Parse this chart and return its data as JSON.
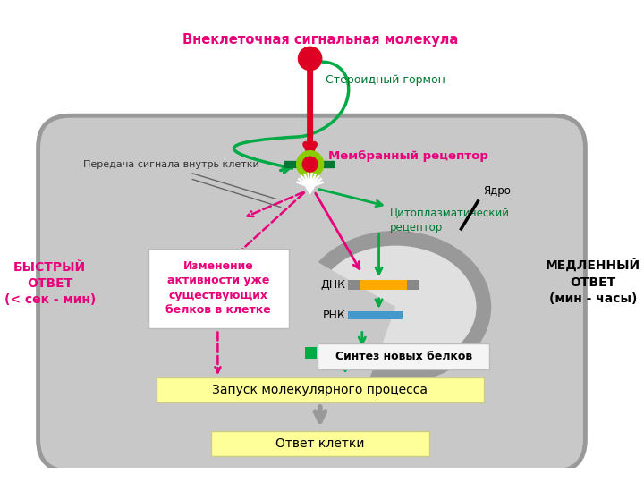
{
  "bg_color": "#ffffff",
  "cell_color": "#c8c8c8",
  "cell_border_color": "#999999",
  "nucleus_color": "#e0e0e0",
  "nucleus_border_color": "#888888",
  "magenta": "#e8007a",
  "green": "#00aa44",
  "dark_green": "#007733",
  "red": "#dd0022",
  "yellow_box": "#ffff99",
  "white_box": "#ffffff",
  "gray_arrow": "#999999",
  "texts": {
    "extracellular": "Внеклеточная сигнальная молекула",
    "steroid": "Стероидный гормон",
    "membrane_receptor": "Мембранный рецептор",
    "signal_transfer": "Передача сигнала внутрь клетки",
    "cytoplasmic_receptor": "Цитоплазматический\nрецептор",
    "nucleus": "Ядро",
    "dna": "ДНК",
    "rna": "РНК",
    "activity_change": "Изменение\nактивности уже\nсуществующих\nбелков в клетке",
    "protein_synthesis": "Синтез новых белков",
    "molecular_process": "Запуск молекулярного процесса",
    "cell_response": "Ответ клетки",
    "fast_response": "БЫСТРЫЙ\nОТВЕТ\n(< сек - мин)",
    "slow_response": "МЕДЛЕННЫЙ\nОТВЕТ\n(мин - часы)"
  }
}
